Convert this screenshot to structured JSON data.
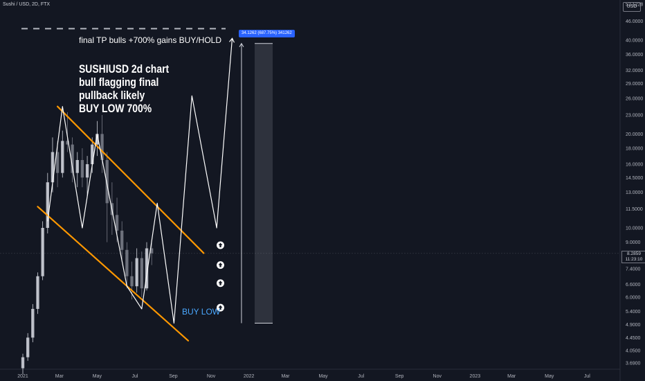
{
  "header": {
    "symbol": "Sushi / USD, 2D, FTX",
    "currency": "USD"
  },
  "annotations": {
    "tp_note": "final TP bulls +700% gains BUY/HOLD",
    "idea_lines": [
      "SUSHIUSD 2d chart",
      "bull flagging final",
      "pullback likely",
      "BUY LOW 700%"
    ],
    "buy_low": "BUY LOW",
    "measure": "34.1262 (687.75%) 341262"
  },
  "last_price": {
    "price": "8.2859",
    "countdown": "11:23:10"
  },
  "colors": {
    "background": "#131722",
    "channel": "#ff9800",
    "projection": "#ffffff",
    "measure": "#2962ff",
    "text": "#b2b5be"
  },
  "chart_data": {
    "type": "line",
    "title": "",
    "price_scale": "log",
    "y_ticks": [
      52.1228,
      46.0,
      40.0,
      36.0,
      32.0,
      29.0,
      26.0,
      23.0,
      20.0,
      18.0,
      16.0,
      14.5,
      13.0,
      11.5,
      10.0,
      9.0,
      8.0,
      7.4,
      6.6,
      6.0,
      5.4,
      4.9,
      4.45,
      4.05,
      3.69
    ],
    "y_tick_labels": [
      "52.1228",
      "46.0000",
      "40.0000",
      "36.0000",
      "32.0000",
      "29.0000",
      "26.0000",
      "23.0000",
      "20.0000",
      "18.0000",
      "16.0000",
      "14.5000",
      "13.0000",
      "11.5000",
      "10.0000",
      "9.0000",
      "8.0000",
      "7.4000",
      "6.6000",
      "6.0000",
      "5.4000",
      "4.9000",
      "4.4500",
      "4.0500",
      "3.6900"
    ],
    "x_tick_labels": [
      "2021",
      "Mar",
      "May",
      "Jul",
      "Sep",
      "Nov",
      "2022",
      "Mar",
      "May",
      "Jul",
      "Sep",
      "Nov",
      "2023",
      "Mar",
      "May",
      "Jul"
    ],
    "ohlc": [
      {
        "date": "2021-01-01",
        "open": 3.55,
        "high": 3.95,
        "low": 3.4,
        "close": 3.85
      },
      {
        "date": "2021-01-09",
        "open": 3.85,
        "high": 4.6,
        "low": 3.75,
        "close": 4.45
      },
      {
        "date": "2021-01-17",
        "open": 4.45,
        "high": 5.7,
        "low": 4.3,
        "close": 5.5
      },
      {
        "date": "2021-01-25",
        "open": 5.5,
        "high": 7.2,
        "low": 5.3,
        "close": 7.0
      },
      {
        "date": "2021-02-02",
        "open": 7.0,
        "high": 10.5,
        "low": 6.8,
        "close": 10.0
      },
      {
        "date": "2021-02-10",
        "open": 10.0,
        "high": 15.0,
        "low": 9.6,
        "close": 14.0
      },
      {
        "date": "2021-02-18",
        "open": 14.0,
        "high": 19.5,
        "low": 13.0,
        "close": 17.5
      },
      {
        "date": "2021-02-26",
        "open": 17.5,
        "high": 19.0,
        "low": 13.5,
        "close": 15.0
      },
      {
        "date": "2021-03-06",
        "open": 15.0,
        "high": 20.5,
        "low": 14.5,
        "close": 19.0
      },
      {
        "date": "2021-03-14",
        "open": 19.0,
        "high": 23.5,
        "low": 17.5,
        "close": 18.5
      },
      {
        "date": "2021-03-22",
        "open": 18.5,
        "high": 19.5,
        "low": 14.0,
        "close": 15.0
      },
      {
        "date": "2021-03-30",
        "open": 15.0,
        "high": 17.5,
        "low": 13.5,
        "close": 16.5
      },
      {
        "date": "2021-04-07",
        "open": 16.5,
        "high": 18.0,
        "low": 13.5,
        "close": 14.5
      },
      {
        "date": "2021-04-15",
        "open": 14.5,
        "high": 17.0,
        "low": 12.5,
        "close": 16.0
      },
      {
        "date": "2021-04-23",
        "open": 16.0,
        "high": 19.5,
        "low": 15.0,
        "close": 18.5
      },
      {
        "date": "2021-05-01",
        "open": 18.5,
        "high": 22.0,
        "low": 17.0,
        "close": 20.0
      },
      {
        "date": "2021-05-09",
        "open": 20.0,
        "high": 23.0,
        "low": 15.0,
        "close": 16.5
      },
      {
        "date": "2021-05-17",
        "open": 16.5,
        "high": 17.5,
        "low": 9.0,
        "close": 12.0
      },
      {
        "date": "2021-05-25",
        "open": 12.0,
        "high": 14.0,
        "low": 9.5,
        "close": 11.0
      },
      {
        "date": "2021-06-02",
        "open": 11.0,
        "high": 12.5,
        "low": 9.0,
        "close": 9.8
      },
      {
        "date": "2021-06-10",
        "open": 9.8,
        "high": 10.5,
        "low": 7.8,
        "close": 8.5
      },
      {
        "date": "2021-06-18",
        "open": 8.5,
        "high": 9.0,
        "low": 6.4,
        "close": 7.0
      },
      {
        "date": "2021-06-26",
        "open": 7.0,
        "high": 7.8,
        "low": 5.9,
        "close": 6.5
      },
      {
        "date": "2021-07-04",
        "open": 6.5,
        "high": 8.6,
        "low": 6.2,
        "close": 8.0
      },
      {
        "date": "2021-07-12",
        "open": 8.0,
        "high": 8.4,
        "low": 6.0,
        "close": 6.4
      },
      {
        "date": "2021-07-20",
        "open": 6.4,
        "high": 9.0,
        "low": 6.3,
        "close": 8.6
      },
      {
        "date": "2021-07-28",
        "open": 8.6,
        "high": 9.1,
        "low": 7.6,
        "close": 8.29
      }
    ],
    "channel": {
      "upper": [
        {
          "date": "2021-02-26",
          "price": 24.5
        },
        {
          "date": "2021-10-20",
          "price": 8.3
        }
      ],
      "lower": [
        {
          "date": "2021-01-25",
          "price": 11.7
        },
        {
          "date": "2021-09-25",
          "price": 4.35
        }
      ]
    },
    "projection_path": [
      {
        "date": "2021-02-10",
        "price": 10.5
      },
      {
        "date": "2021-03-06",
        "price": 24.5
      },
      {
        "date": "2021-04-07",
        "price": 10.0
      },
      {
        "date": "2021-05-01",
        "price": 20.0
      },
      {
        "date": "2021-06-18",
        "price": 6.5
      },
      {
        "date": "2021-07-12",
        "price": 5.5
      },
      {
        "date": "2021-08-06",
        "price": 12.0
      },
      {
        "date": "2021-09-02",
        "price": 4.95
      },
      {
        "date": "2021-10-01",
        "price": 26.5
      },
      {
        "date": "2021-11-10",
        "price": 10.0
      },
      {
        "date": "2021-12-05",
        "price": 40.5
      }
    ],
    "tp_level": 43.5,
    "measure_range": {
      "date": "2021-12-20",
      "from": 4.95,
      "to": 39.0
    },
    "buy_markers": [
      {
        "date": "2021-11-16",
        "price": 8.8
      },
      {
        "date": "2021-11-16",
        "price": 7.6
      },
      {
        "date": "2021-11-16",
        "price": 6.65
      },
      {
        "date": "2021-11-16",
        "price": 5.55
      }
    ]
  }
}
